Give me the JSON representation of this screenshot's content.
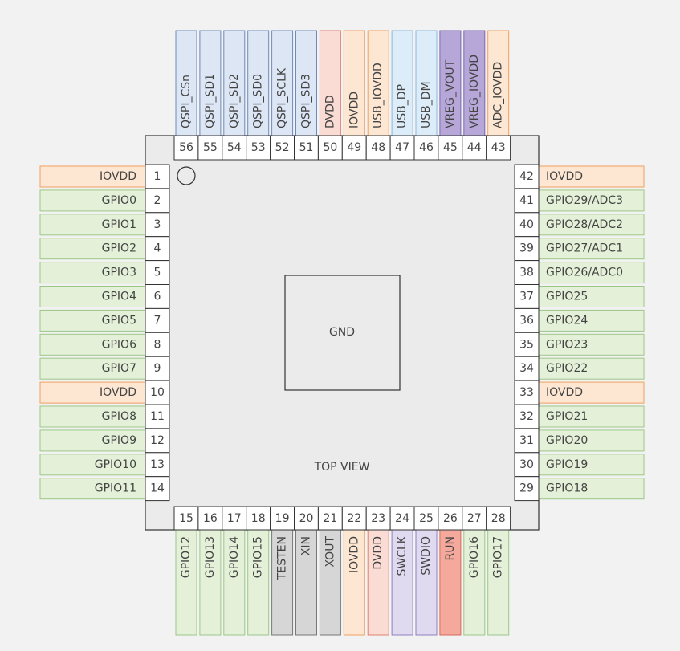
{
  "center_label": "GND",
  "view_label": "TOP VIEW",
  "left_pins": [
    {
      "number": 1,
      "label": "IOVDD",
      "fill": "#fde7d3",
      "stroke": "#f0a060"
    },
    {
      "number": 2,
      "label": "GPIO0",
      "fill": "#e4f0d8",
      "stroke": "#9cc787"
    },
    {
      "number": 3,
      "label": "GPIO1",
      "fill": "#e4f0d8",
      "stroke": "#9cc787"
    },
    {
      "number": 4,
      "label": "GPIO2",
      "fill": "#e4f0d8",
      "stroke": "#9cc787"
    },
    {
      "number": 5,
      "label": "GPIO3",
      "fill": "#e4f0d8",
      "stroke": "#9cc787"
    },
    {
      "number": 6,
      "label": "GPIO4",
      "fill": "#e4f0d8",
      "stroke": "#9cc787"
    },
    {
      "number": 7,
      "label": "GPIO5",
      "fill": "#e4f0d8",
      "stroke": "#9cc787"
    },
    {
      "number": 8,
      "label": "GPIO6",
      "fill": "#e4f0d8",
      "stroke": "#9cc787"
    },
    {
      "number": 9,
      "label": "GPIO7",
      "fill": "#e4f0d8",
      "stroke": "#9cc787"
    },
    {
      "number": 10,
      "label": "IOVDD",
      "fill": "#fde7d3",
      "stroke": "#f0a060"
    },
    {
      "number": 11,
      "label": "GPIO8",
      "fill": "#e4f0d8",
      "stroke": "#9cc787"
    },
    {
      "number": 12,
      "label": "GPIO9",
      "fill": "#e4f0d8",
      "stroke": "#9cc787"
    },
    {
      "number": 13,
      "label": "GPIO10",
      "fill": "#e4f0d8",
      "stroke": "#9cc787"
    },
    {
      "number": 14,
      "label": "GPIO11",
      "fill": "#e4f0d8",
      "stroke": "#9cc787"
    }
  ],
  "bottom_pins": [
    {
      "number": 15,
      "label": "GPIO12",
      "fill": "#e4f0d8",
      "stroke": "#9cc787"
    },
    {
      "number": 16,
      "label": "GPIO13",
      "fill": "#e4f0d8",
      "stroke": "#9cc787"
    },
    {
      "number": 17,
      "label": "GPIO14",
      "fill": "#e4f0d8",
      "stroke": "#9cc787"
    },
    {
      "number": 18,
      "label": "GPIO15",
      "fill": "#e4f0d8",
      "stroke": "#9cc787"
    },
    {
      "number": 19,
      "label": "TESTEN",
      "fill": "#d6d6d6",
      "stroke": "#777777"
    },
    {
      "number": 20,
      "label": "XIN",
      "fill": "#d6d6d6",
      "stroke": "#777777"
    },
    {
      "number": 21,
      "label": "XOUT",
      "fill": "#d6d6d6",
      "stroke": "#777777"
    },
    {
      "number": 22,
      "label": "IOVDD",
      "fill": "#fde7d3",
      "stroke": "#f0a060"
    },
    {
      "number": 23,
      "label": "DVDD",
      "fill": "#fbdcd4",
      "stroke": "#e08070"
    },
    {
      "number": 24,
      "label": "SWCLK",
      "fill": "#e0daf1",
      "stroke": "#8e80c0"
    },
    {
      "number": 25,
      "label": "SWDIO",
      "fill": "#e0daf1",
      "stroke": "#8e80c0"
    },
    {
      "number": 26,
      "label": "RUN",
      "fill": "#f5a99c",
      "stroke": "#d46a5a"
    },
    {
      "number": 27,
      "label": "GPIO16",
      "fill": "#e4f0d8",
      "stroke": "#9cc787"
    },
    {
      "number": 28,
      "label": "GPIO17",
      "fill": "#e4f0d8",
      "stroke": "#9cc787"
    }
  ],
  "right_pins": [
    {
      "number": 42,
      "label": "IOVDD",
      "fill": "#fde7d3",
      "stroke": "#f0a060"
    },
    {
      "number": 41,
      "label": "GPIO29/ADC3",
      "fill": "#e4f0d8",
      "stroke": "#9cc787"
    },
    {
      "number": 40,
      "label": "GPIO28/ADC2",
      "fill": "#e4f0d8",
      "stroke": "#9cc787"
    },
    {
      "number": 39,
      "label": "GPIO27/ADC1",
      "fill": "#e4f0d8",
      "stroke": "#9cc787"
    },
    {
      "number": 38,
      "label": "GPIO26/ADC0",
      "fill": "#e4f0d8",
      "stroke": "#9cc787"
    },
    {
      "number": 37,
      "label": "GPIO25",
      "fill": "#e4f0d8",
      "stroke": "#9cc787"
    },
    {
      "number": 36,
      "label": "GPIO24",
      "fill": "#e4f0d8",
      "stroke": "#9cc787"
    },
    {
      "number": 35,
      "label": "GPIO23",
      "fill": "#e4f0d8",
      "stroke": "#9cc787"
    },
    {
      "number": 34,
      "label": "GPIO22",
      "fill": "#e4f0d8",
      "stroke": "#9cc787"
    },
    {
      "number": 33,
      "label": "IOVDD",
      "fill": "#fde7d3",
      "stroke": "#f0a060"
    },
    {
      "number": 32,
      "label": "GPIO21",
      "fill": "#e4f0d8",
      "stroke": "#9cc787"
    },
    {
      "number": 31,
      "label": "GPIO20",
      "fill": "#e4f0d8",
      "stroke": "#9cc787"
    },
    {
      "number": 30,
      "label": "GPIO19",
      "fill": "#e4f0d8",
      "stroke": "#9cc787"
    },
    {
      "number": 29,
      "label": "GPIO18",
      "fill": "#e4f0d8",
      "stroke": "#9cc787"
    }
  ],
  "top_pins": [
    {
      "number": 56,
      "label": "QSPI_CSn",
      "fill": "#dde6f4",
      "stroke": "#6f89b9"
    },
    {
      "number": 55,
      "label": "QSPI_SD1",
      "fill": "#dde6f4",
      "stroke": "#6f89b9"
    },
    {
      "number": 54,
      "label": "QSPI_SD2",
      "fill": "#dde6f4",
      "stroke": "#6f89b9"
    },
    {
      "number": 53,
      "label": "QSPI_SD0",
      "fill": "#dde6f4",
      "stroke": "#6f89b9"
    },
    {
      "number": 52,
      "label": "QSPI_SCLK",
      "fill": "#dde6f4",
      "stroke": "#6f89b9"
    },
    {
      "number": 51,
      "label": "QSPI_SD3",
      "fill": "#dde6f4",
      "stroke": "#6f89b9"
    },
    {
      "number": 50,
      "label": "DVDD",
      "fill": "#fbdcd4",
      "stroke": "#e08070"
    },
    {
      "number": 49,
      "label": "IOVDD",
      "fill": "#fde7d3",
      "stroke": "#f0a060"
    },
    {
      "number": 48,
      "label": "USB_IOVDD",
      "fill": "#fde7d3",
      "stroke": "#f0a060"
    },
    {
      "number": 47,
      "label": "USB_DP",
      "fill": "#dcecf8",
      "stroke": "#8ab8de"
    },
    {
      "number": 46,
      "label": "USB_DM",
      "fill": "#dcecf8",
      "stroke": "#8ab8de"
    },
    {
      "number": 45,
      "label": "VREG_VOUT",
      "fill": "#b6a7d8",
      "stroke": "#7a68b0"
    },
    {
      "number": 44,
      "label": "VREG_IOVDD",
      "fill": "#b6a7d8",
      "stroke": "#7a68b0"
    },
    {
      "number": 43,
      "label": "ADC_IOVDD",
      "fill": "#fde7d3",
      "stroke": "#f0a060"
    }
  ]
}
